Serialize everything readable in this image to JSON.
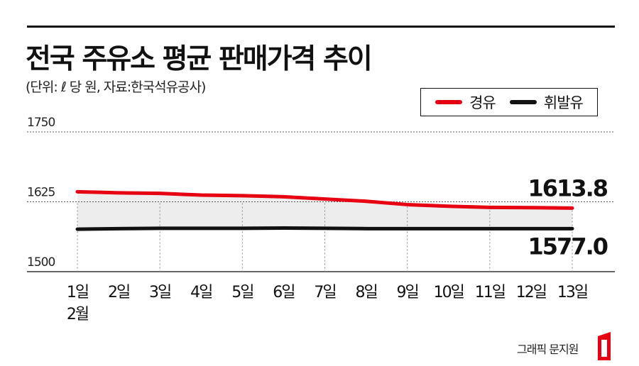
{
  "title": "전국 주유소 평균 판매가격 추이",
  "subtitle": "(단위: ℓ 당 원, 자료:한국석유공사)",
  "credit": "그래픽 문지원",
  "colors": {
    "diesel": "#e60012",
    "kerosene": "#111111",
    "band": "#ededed",
    "grid": "#555555"
  },
  "chart_data": {
    "type": "line",
    "x": [
      "1일",
      "2일",
      "3일",
      "4일",
      "5일",
      "6일",
      "7일",
      "8일",
      "9일",
      "10일",
      "11일",
      "12일",
      "13일"
    ],
    "x_sublabel": "2월",
    "ylim": [
      1500,
      1750
    ],
    "yticks": [
      1500,
      1625,
      1750
    ],
    "grid": true,
    "legend_position": "top-right",
    "series": [
      {
        "name": "경유",
        "color": "#e60012",
        "values": [
          1643,
          1641,
          1640,
          1637,
          1636,
          1634,
          1630,
          1626,
          1620,
          1617,
          1615,
          1614.5,
          1613.8
        ],
        "end_label": "1613.8"
      },
      {
        "name": "휘발유",
        "color": "#111111",
        "values": [
          1576,
          1577,
          1577.5,
          1577.5,
          1577.5,
          1578,
          1577.5,
          1577,
          1577,
          1577,
          1577,
          1577,
          1577.0
        ],
        "end_label": "1577.0"
      }
    ]
  }
}
